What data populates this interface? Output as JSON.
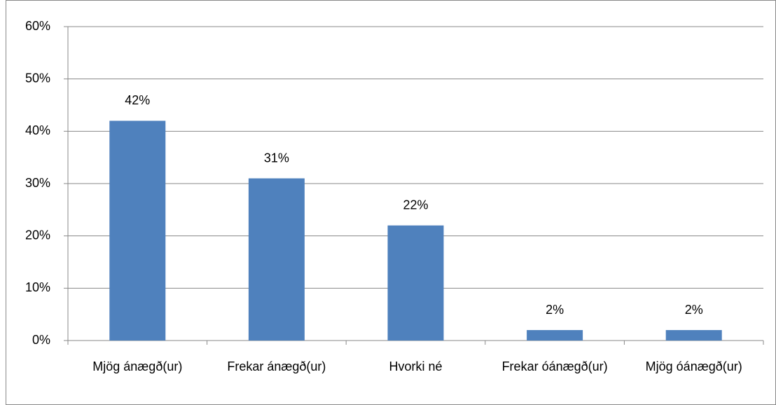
{
  "chart_data": {
    "type": "bar",
    "categories": [
      "Mjög ánægð(ur)",
      "Frekar ánægð(ur)",
      "Hvorki né",
      "Frekar óánægð(ur)",
      "Mjög óánægð(ur)"
    ],
    "values": [
      42,
      31,
      22,
      2,
      2
    ],
    "value_labels": [
      "42%",
      "31%",
      "22%",
      "2%",
      "2%"
    ],
    "color": "#4f81bd",
    "ylim": [
      0,
      60
    ],
    "yticks": [
      {
        "value": 0,
        "label": "0%"
      },
      {
        "value": 10,
        "label": "10%"
      },
      {
        "value": 20,
        "label": "20%"
      },
      {
        "value": 30,
        "label": "30%"
      },
      {
        "value": 40,
        "label": "40%"
      },
      {
        "value": 50,
        "label": "50%"
      },
      {
        "value": 60,
        "label": "60%"
      }
    ],
    "grid": true
  }
}
